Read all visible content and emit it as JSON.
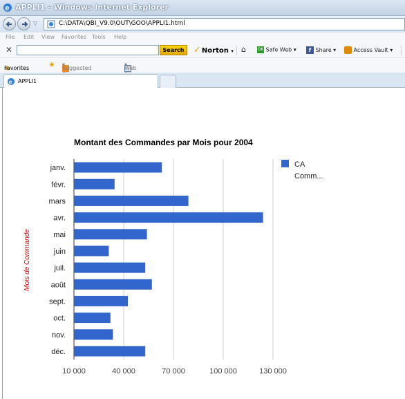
{
  "window": {
    "title": "APPLI1 - Windows Internet Explorer"
  },
  "address_bar": {
    "url": "C:\\DATA\\QBI_V9.0\\OUT\\GOO\\APPLI1.html"
  },
  "menu": {
    "items": [
      "File",
      "Edit",
      "View",
      "Favorites",
      "Tools",
      "Help"
    ]
  },
  "norton_toolbar": {
    "search_button": "Search",
    "norton_label": "Norton",
    "safe_web_label": "Safe Web",
    "share_label": "Share",
    "access_vault_label": "Access Vault"
  },
  "favorites_bar": {
    "favorites_label": "Favorites",
    "suggested_sites_label": "Suggested Sites",
    "web_slice_label": "Web Slice Gallery"
  },
  "tab": {
    "label": "APPLI1"
  },
  "chart_data": {
    "type": "bar",
    "orientation": "horizontal",
    "title": "Montant des Commandes par Mois pour 2004",
    "ylabel": "Mois de Commande",
    "xlabel": "",
    "categories": [
      "janv.",
      "févr.",
      "mars",
      "avr.",
      "mai",
      "juin",
      "juil.",
      "août",
      "sept.",
      "oct.",
      "nov.",
      "déc."
    ],
    "series": [
      {
        "name": "CA Comm...",
        "color": "#3366cc",
        "values": [
          63000,
          34500,
          79000,
          124000,
          54000,
          31000,
          53000,
          57000,
          42500,
          32000,
          33500,
          53000
        ]
      }
    ],
    "x_ticks": [
      "10 000",
      "40 000",
      "70 000",
      "100 000",
      "130 000"
    ],
    "x_tick_values": [
      10000,
      40000,
      70000,
      100000,
      130000
    ],
    "xlim": [
      10000,
      130000
    ],
    "grid": true,
    "legend_position": "right",
    "colors": {
      "bar": "#3366cc",
      "ylabel": "#cc0000",
      "grid": "#cccccc"
    }
  }
}
